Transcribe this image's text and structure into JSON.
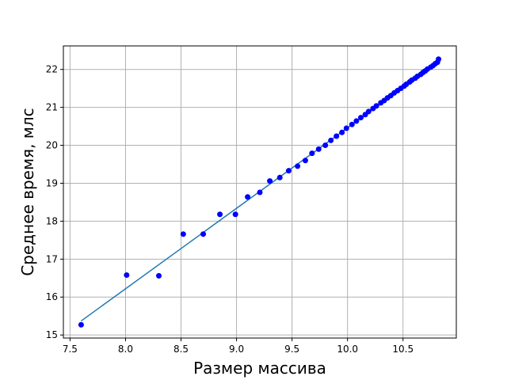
{
  "chart_data": {
    "type": "scatter",
    "title": "",
    "xlabel": "Размер массива",
    "ylabel": "Среднее время, млс",
    "xlim": [
      7.44,
      10.98
    ],
    "ylim": [
      14.92,
      22.62
    ],
    "grid": true,
    "xticks": [
      7.5,
      8.0,
      8.5,
      9.0,
      9.5,
      10.0,
      10.5
    ],
    "xtick_labels": [
      "7.5",
      "8.0",
      "8.5",
      "9.0",
      "9.5",
      "10.0",
      "10.5"
    ],
    "yticks": [
      15,
      16,
      17,
      18,
      19,
      20,
      21,
      22
    ],
    "ytick_labels": [
      "15",
      "16",
      "17",
      "18",
      "19",
      "20",
      "21",
      "22"
    ],
    "colors": {
      "points": "#0000ff",
      "fit_line": "#1f77b4",
      "grid": "#b0b0b0"
    },
    "points": [
      [
        7.6,
        15.27
      ],
      [
        8.01,
        16.58
      ],
      [
        8.3,
        16.56
      ],
      [
        8.52,
        17.66
      ],
      [
        8.7,
        17.66
      ],
      [
        8.85,
        18.18
      ],
      [
        8.99,
        18.18
      ],
      [
        9.1,
        18.64
      ],
      [
        9.21,
        18.76
      ],
      [
        9.3,
        19.06
      ],
      [
        9.39,
        19.15
      ],
      [
        9.47,
        19.33
      ],
      [
        9.55,
        19.45
      ],
      [
        9.62,
        19.6
      ],
      [
        9.68,
        19.79
      ],
      [
        9.74,
        19.9
      ],
      [
        9.8,
        20.0
      ],
      [
        9.85,
        20.13
      ],
      [
        9.9,
        20.24
      ],
      [
        9.95,
        20.34
      ],
      [
        9.99,
        20.45
      ],
      [
        10.04,
        20.55
      ],
      [
        10.08,
        20.64
      ],
      [
        10.12,
        20.73
      ],
      [
        10.16,
        20.81
      ],
      [
        10.19,
        20.89
      ],
      [
        10.23,
        20.97
      ],
      [
        10.26,
        21.04
      ],
      [
        10.3,
        21.12
      ],
      [
        10.33,
        21.18
      ],
      [
        10.36,
        21.25
      ],
      [
        10.39,
        21.31
      ],
      [
        10.42,
        21.38
      ],
      [
        10.45,
        21.44
      ],
      [
        10.48,
        21.5
      ],
      [
        10.51,
        21.56
      ],
      [
        10.53,
        21.61
      ],
      [
        10.56,
        21.67
      ],
      [
        10.58,
        21.72
      ],
      [
        10.61,
        21.77
      ],
      [
        10.63,
        21.82
      ],
      [
        10.66,
        21.87
      ],
      [
        10.68,
        21.92
      ],
      [
        10.7,
        21.96
      ],
      [
        10.72,
        22.01
      ],
      [
        10.75,
        22.06
      ],
      [
        10.77,
        22.1
      ],
      [
        10.79,
        22.15
      ],
      [
        10.81,
        22.19
      ],
      [
        10.82,
        22.27
      ]
    ],
    "fit_line": {
      "x": [
        7.6,
        10.82
      ],
      "y": [
        15.37,
        22.2
      ]
    }
  }
}
